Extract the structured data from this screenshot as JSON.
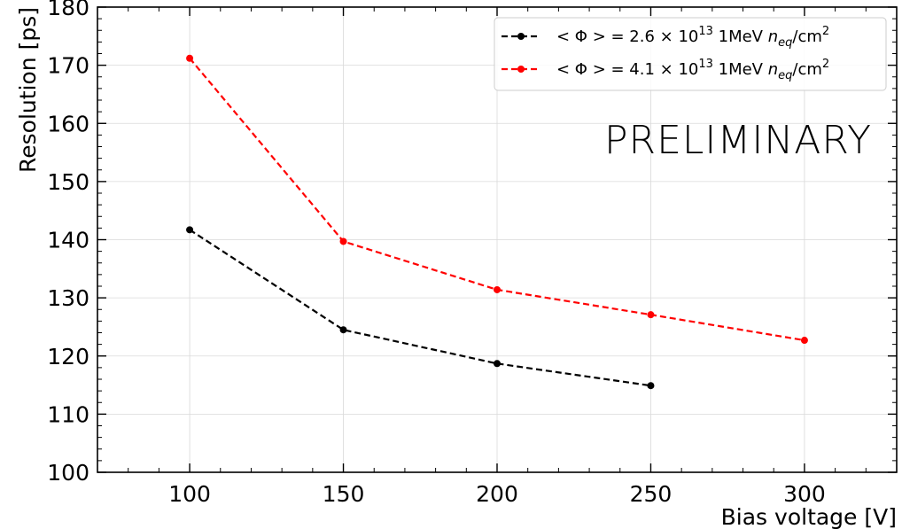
{
  "chart_data": {
    "type": "line",
    "xlabel": "Bias voltage [V]",
    "ylabel": "Resolution [ps]",
    "xlim": [
      70,
      330
    ],
    "ylim": [
      100,
      180
    ],
    "xticks": [
      100,
      150,
      200,
      250,
      300
    ],
    "yticks": [
      100,
      110,
      120,
      130,
      140,
      150,
      160,
      170,
      180
    ],
    "grid": true,
    "legend_position": "top-right",
    "annotation": "PRELIMINARY",
    "series": [
      {
        "name": "< Φ > = 2.6 × 10^13 1MeV n_eq/cm^2",
        "legend": {
          "prefix": "< Φ > = 2.6 × 10",
          "exp": "13",
          "mid": " 1MeV ",
          "var": "n",
          "sub": "eq",
          "unit": "/cm",
          "unit_exp": "2"
        },
        "color": "#000000",
        "linestyle": "dashed",
        "x": [
          100,
          150,
          200,
          250
        ],
        "y": [
          141.7,
          124.5,
          118.7,
          114.9
        ]
      },
      {
        "name": "< Φ > = 4.1 × 10^13 1MeV n_eq/cm^2",
        "legend": {
          "prefix": "< Φ > = 4.1 × 10",
          "exp": "13",
          "mid": " 1MeV ",
          "var": "n",
          "sub": "eq",
          "unit": "/cm",
          "unit_exp": "2"
        },
        "color": "#ff0000",
        "linestyle": "dashed",
        "x": [
          100,
          150,
          200,
          250,
          300
        ],
        "y": [
          171.2,
          139.7,
          131.4,
          127.1,
          122.7
        ]
      }
    ]
  }
}
